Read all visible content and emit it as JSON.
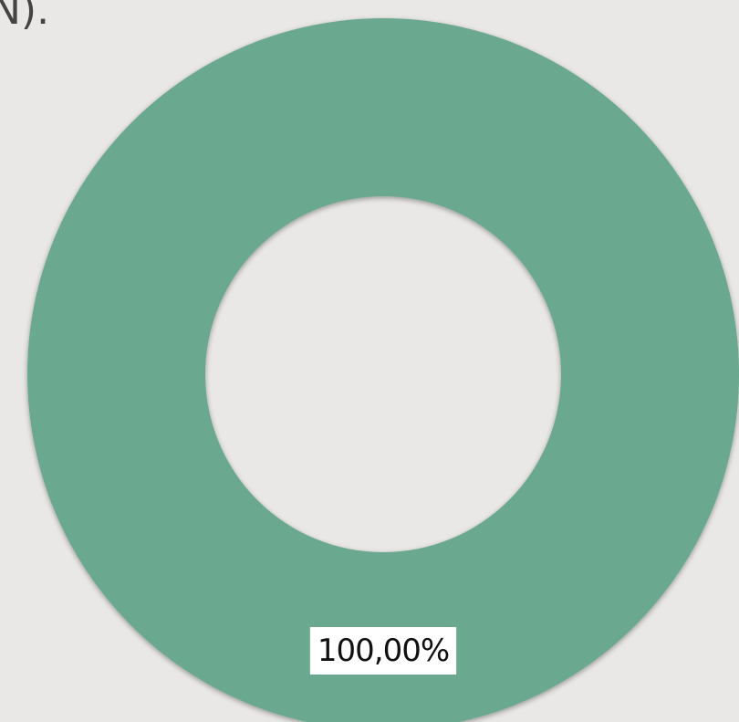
{
  "chart_data": {
    "type": "pie",
    "donut": true,
    "title": "N).",
    "values": [
      100
    ],
    "value_labels": [
      "100,00%"
    ],
    "colors": [
      "#6ba88f"
    ]
  }
}
